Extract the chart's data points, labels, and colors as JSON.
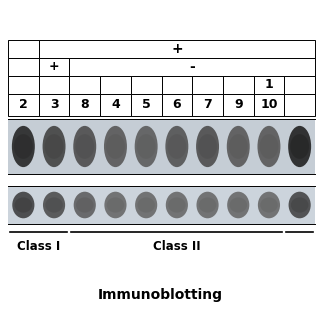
{
  "title": "Immunoblotting",
  "bg_color": "#ffffff",
  "class1_label": "Class I",
  "class2_label": "Class II",
  "row0_plus": "+",
  "row1_plus": "+",
  "row1_minus": "-",
  "row2_labels": [
    "",
    "",
    "",
    "",
    "",
    "",
    "",
    "",
    "1",
    ""
  ],
  "row3_labels": [
    "2",
    "3",
    "8",
    "4",
    "5",
    "6",
    "7",
    "9",
    "10",
    ""
  ],
  "num_cols": 10,
  "band1_intensities": [
    0.82,
    0.7,
    0.65,
    0.6,
    0.58,
    0.62,
    0.65,
    0.6,
    0.6,
    0.85
  ],
  "band2_intensities": [
    0.75,
    0.68,
    0.6,
    0.55,
    0.55,
    0.55,
    0.55,
    0.55,
    0.55,
    0.72
  ]
}
